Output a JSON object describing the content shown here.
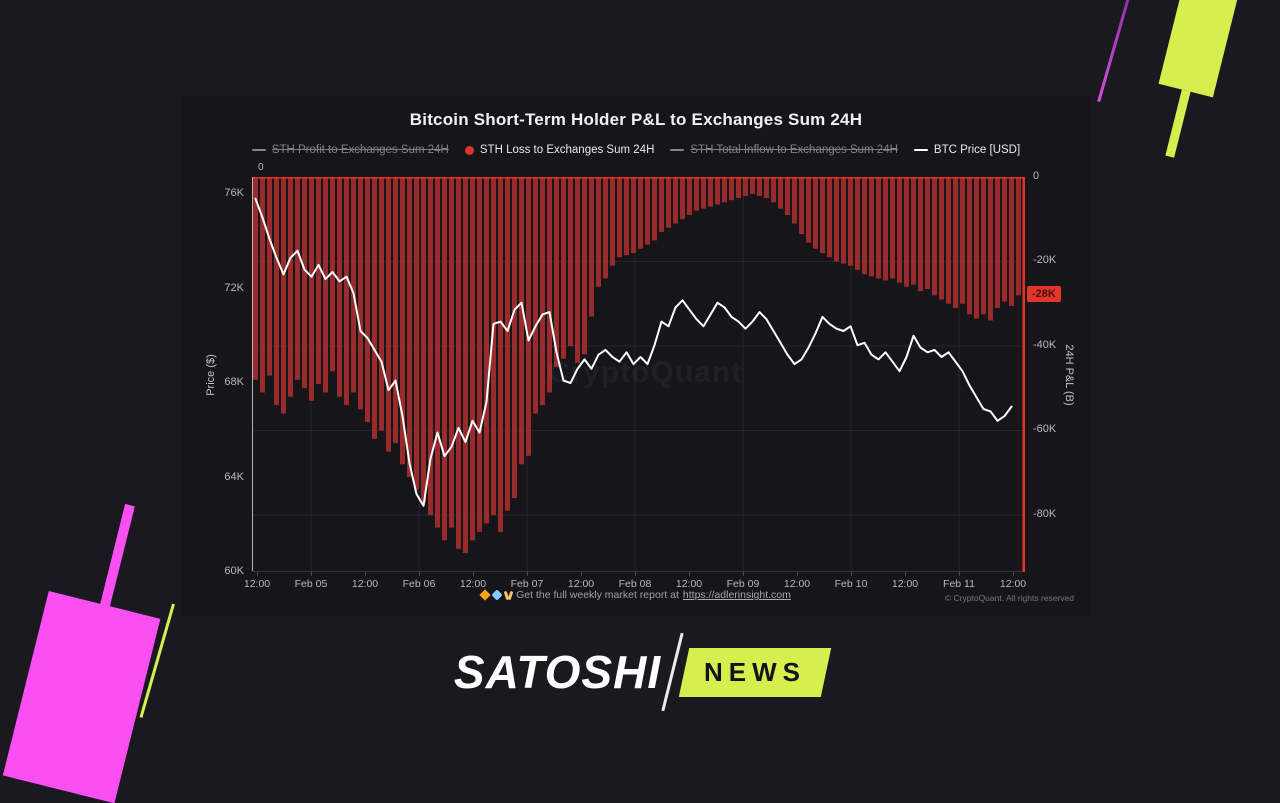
{
  "watermark": "CryptoQuant",
  "colors": {
    "background": "#1a1920",
    "card_background": "#15151a",
    "bar": "#9a2b2b",
    "accent_red": "#e5352b",
    "price_line": "#ffffff",
    "grid": "#26262d",
    "tick_text": "#b8b9c1",
    "lime": "#d7ef4e",
    "magenta": "#fb4ff1"
  },
  "legend": [
    {
      "label": "STH Profit to Exchanges Sum 24H",
      "marker": "dash",
      "color": "#85858d",
      "disabled": true
    },
    {
      "label": "STH Loss to Exchanges Sum 24H",
      "marker": "circle",
      "color": "#df342a",
      "disabled": false
    },
    {
      "label": "STH Total Inflow to Exchanges Sum 24H",
      "marker": "dash",
      "color": "#85858d",
      "disabled": true
    },
    {
      "label": "BTC Price [USD]",
      "marker": "dash",
      "color": "#ffffff",
      "disabled": false
    }
  ],
  "chart_data": {
    "type": "mixed",
    "title": "Bitcoin Short-Term Holder P&L to Exchanges Sum 24H",
    "x_ticks": [
      "12:00",
      "Feb 05",
      "12:00",
      "Feb 06",
      "12:00",
      "Feb 07",
      "12:00",
      "Feb 08",
      "12:00",
      "Feb 09",
      "12:00",
      "Feb 10",
      "12:00",
      "Feb 11",
      "12:00"
    ],
    "left_axis": {
      "label": "Price ($)",
      "ticks": [
        "76K",
        "72K",
        "68K",
        "64K",
        "60K"
      ],
      "tick_values": [
        76000,
        72000,
        68000,
        64000,
        60000
      ],
      "range": [
        60000,
        76720
      ]
    },
    "right_axis": {
      "label": "24H P&L (B)",
      "ticks": [
        "0",
        "-20K",
        "-40K",
        "-60K",
        "-80K"
      ],
      "tick_values": [
        0,
        -20000,
        -40000,
        -60000,
        -80000
      ],
      "range": [
        -93500,
        0
      ],
      "zero_label_left": "0",
      "last_value_badge": "-28K",
      "last_value": -28000
    },
    "series": [
      {
        "name": "STH Loss to Exchanges Sum 24H",
        "type": "bar",
        "axis": "right",
        "color": "#9a2b2b",
        "unit": "K",
        "values_k": [
          -48,
          -51,
          -47,
          -54,
          -56,
          -52,
          -48,
          -50,
          -53,
          -49,
          -51,
          -46,
          -52,
          -54,
          -51,
          -55,
          -58,
          -62,
          -60,
          -65,
          -63,
          -68,
          -71,
          -74,
          -77,
          -80,
          -83,
          -86,
          -83,
          -88,
          -89,
          -86,
          -84,
          -82,
          -80,
          -84,
          -79,
          -76,
          -68,
          -66,
          -56,
          -54,
          -51,
          -45,
          -43,
          -40,
          -44,
          -42,
          -33,
          -26,
          -24,
          -21,
          -19,
          -18.5,
          -18,
          -17,
          -16,
          -15,
          -13,
          -12,
          -11,
          -10,
          -9,
          -8,
          -7.5,
          -7,
          -6.5,
          -6,
          -5.5,
          -5,
          -4.5,
          -4,
          -4.5,
          -5,
          -6,
          -7.5,
          -9,
          -11,
          -13.5,
          -15.5,
          -17,
          -18,
          -19,
          -20,
          -20.5,
          -21,
          -22,
          -23,
          -23.5,
          -24,
          -24.5,
          -24,
          -25,
          -26,
          -25.5,
          -27,
          -26.5,
          -28,
          -29,
          -30,
          -31,
          -30,
          -32.5,
          -33.5,
          -32.5,
          -34,
          -31,
          -29.5,
          -30.5,
          -28
        ]
      },
      {
        "name": "BTC Price [USD]",
        "type": "line",
        "axis": "left",
        "color": "#ffffff",
        "unit": "K",
        "values_k": [
          75.8,
          75.0,
          74.1,
          73.3,
          72.6,
          73.3,
          73.6,
          72.8,
          72.5,
          73.0,
          72.4,
          72.7,
          72.3,
          72.5,
          71.8,
          70.2,
          69.9,
          69.4,
          68.9,
          67.7,
          68.1,
          66.6,
          64.6,
          63.3,
          62.8,
          64.8,
          65.9,
          64.9,
          65.3,
          66.1,
          65.5,
          66.4,
          65.9,
          67.2,
          70.5,
          70.6,
          70.2,
          71.1,
          71.4,
          69.8,
          70.4,
          70.9,
          71.0,
          69.3,
          68.1,
          68.0,
          68.6,
          69.0,
          68.6,
          69.2,
          69.4,
          69.1,
          68.9,
          69.3,
          68.8,
          69.1,
          68.8,
          69.6,
          70.6,
          70.4,
          71.2,
          71.5,
          71.1,
          70.7,
          70.4,
          70.9,
          71.4,
          71.2,
          70.8,
          70.6,
          70.3,
          70.6,
          71.0,
          70.7,
          70.2,
          69.7,
          69.2,
          68.8,
          69.0,
          69.5,
          70.1,
          70.8,
          70.5,
          70.3,
          70.2,
          70.4,
          69.6,
          69.7,
          69.2,
          69.0,
          69.3,
          68.9,
          68.5,
          69.1,
          70.0,
          69.5,
          69.3,
          69.4,
          69.1,
          69.3,
          68.9,
          68.5,
          67.9,
          67.4,
          66.9,
          66.8,
          66.4,
          66.6,
          67.0
        ]
      },
      {
        "name": "STH Profit to Exchanges Sum 24H",
        "type": "line",
        "axis": "right",
        "hidden": true,
        "values_k": []
      },
      {
        "name": "STH Total Inflow to Exchanges Sum 24H",
        "type": "line",
        "axis": "right",
        "hidden": true,
        "values_k": []
      }
    ]
  },
  "footer": {
    "promo_text": "Get the full weekly market report at",
    "promo_link": "https://adlerinsight.com",
    "copyright": "© CryptoQuant. All rights reserved"
  },
  "branding": {
    "wordmark": "SATOSHI",
    "tag": "NEWS"
  }
}
